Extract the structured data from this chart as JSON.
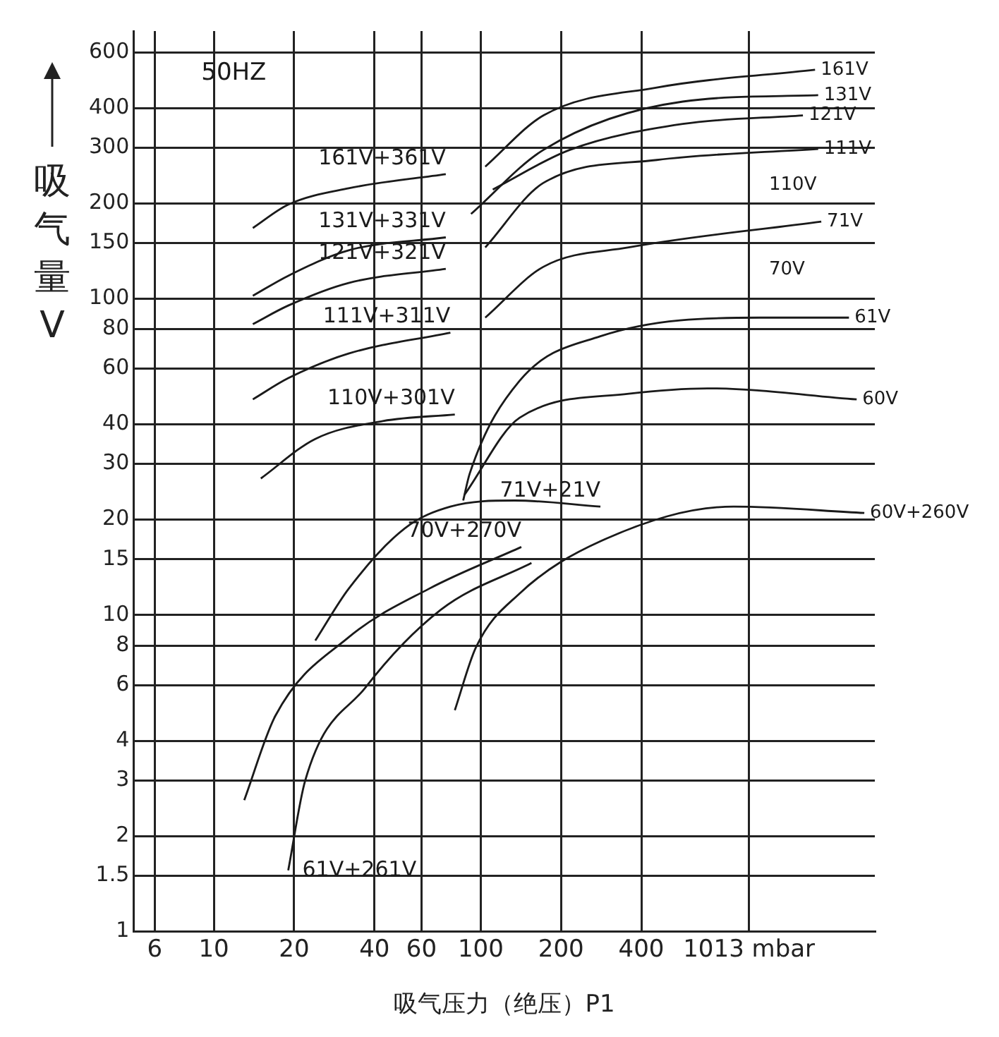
{
  "chart_data": {
    "type": "line",
    "xlabel": "吸气压力（绝压）P1",
    "ylabel": "吸气量V",
    "annotations": [
      "50HZ",
      "110V",
      "70V"
    ],
    "log": "xy",
    "grid": true,
    "legend": false,
    "xlim": [
      5,
      3000
    ],
    "xticks": [
      6,
      10,
      20,
      40,
      60,
      100,
      200,
      400,
      {
        "value": 1013,
        "label": "1013 mbar"
      }
    ],
    "ylim": [
      1,
      700
    ],
    "yticks": [
      1,
      1.5,
      2,
      3,
      4,
      6,
      8,
      10,
      15,
      20,
      30,
      40,
      60,
      80,
      100,
      150,
      200,
      300,
      400,
      600
    ],
    "series": [
      {
        "name": "161V+361V",
        "color": "#1a1a1a",
        "x": [
          14,
          19,
          32,
          74
        ],
        "values": [
          167,
          198,
          223,
          247
        ]
      },
      {
        "name": "131V+331V",
        "color": "#1a1a1a",
        "x": [
          14,
          19,
          32,
          74
        ],
        "values": [
          102,
          118,
          142,
          156
        ]
      },
      {
        "name": "121V+321V",
        "color": "#1a1a1a",
        "x": [
          14,
          19,
          32,
          74
        ],
        "values": [
          83,
          95,
          112,
          124
        ]
      },
      {
        "name": "111V+311V",
        "color": "#1a1a1a",
        "x": [
          14,
          19,
          32,
          77
        ],
        "values": [
          48,
          56,
          67,
          78
        ]
      },
      {
        "name": "110V+301V",
        "color": "#1a1a1a",
        "x": [
          15,
          24,
          43,
          80
        ],
        "values": [
          27,
          36,
          41,
          43
        ]
      },
      {
        "name": "71V+21V",
        "color": "#1a1a1a",
        "x": [
          24,
          32,
          52,
          77,
          134,
          281
        ],
        "values": [
          8.3,
          12.1,
          18.8,
          22,
          23,
          22
        ]
      },
      {
        "name": "70V+270V",
        "color": "#1a1a1a",
        "x": [
          13,
          17,
          32,
          64,
          142
        ],
        "values": [
          2.6,
          4.8,
          8.5,
          12.1,
          16.4
        ]
      },
      {
        "name": "61V+261V",
        "color": "#1a1a1a",
        "x": [
          19,
          22,
          37,
          71,
          155
        ],
        "values": [
          1.56,
          3,
          5.9,
          10.4,
          14.6
        ]
      },
      {
        "name": "60V+260V",
        "color": "#1a1a1a",
        "x": [
          80,
          96,
          140,
          281,
          887,
          2740
        ],
        "values": [
          5,
          7.9,
          11.7,
          17.1,
          22,
          21
        ]
      },
      {
        "name": "161V",
        "color": "#1a1a1a",
        "x": [
          104,
          172,
          457,
          1791
        ],
        "values": [
          261,
          379,
          464,
          528
        ]
      },
      {
        "name": "131V",
        "color": "#1a1a1a",
        "x": [
          92,
          172,
          572,
          1840
        ],
        "values": [
          185,
          295,
          419,
          439
        ]
      },
      {
        "name": "121V",
        "color": "#1a1a1a",
        "x": [
          111,
          216,
          572,
          1613
        ],
        "values": [
          221,
          295,
          356,
          379
        ]
      },
      {
        "name": "111V",
        "color": "#1a1a1a",
        "x": [
          104,
          172,
          457,
          1840
        ],
        "values": [
          145,
          232,
          274,
          297
        ]
      },
      {
        "name": "71V",
        "color": "#1a1a1a",
        "x": [
          104,
          172,
          359,
          1890
        ],
        "values": [
          87,
          126,
          145,
          175
        ]
      },
      {
        "name": "61V",
        "color": "#1a1a1a",
        "x": [
          86,
          91,
          140,
          281,
          1110,
          2400
        ],
        "values": [
          23,
          28,
          55,
          76,
          87,
          87
        ]
      },
      {
        "name": "60V",
        "color": "#1a1a1a",
        "x": [
          87,
          140,
          359,
          707,
          2565
        ],
        "values": [
          24,
          42,
          50,
          52,
          48
        ]
      }
    ]
  }
}
